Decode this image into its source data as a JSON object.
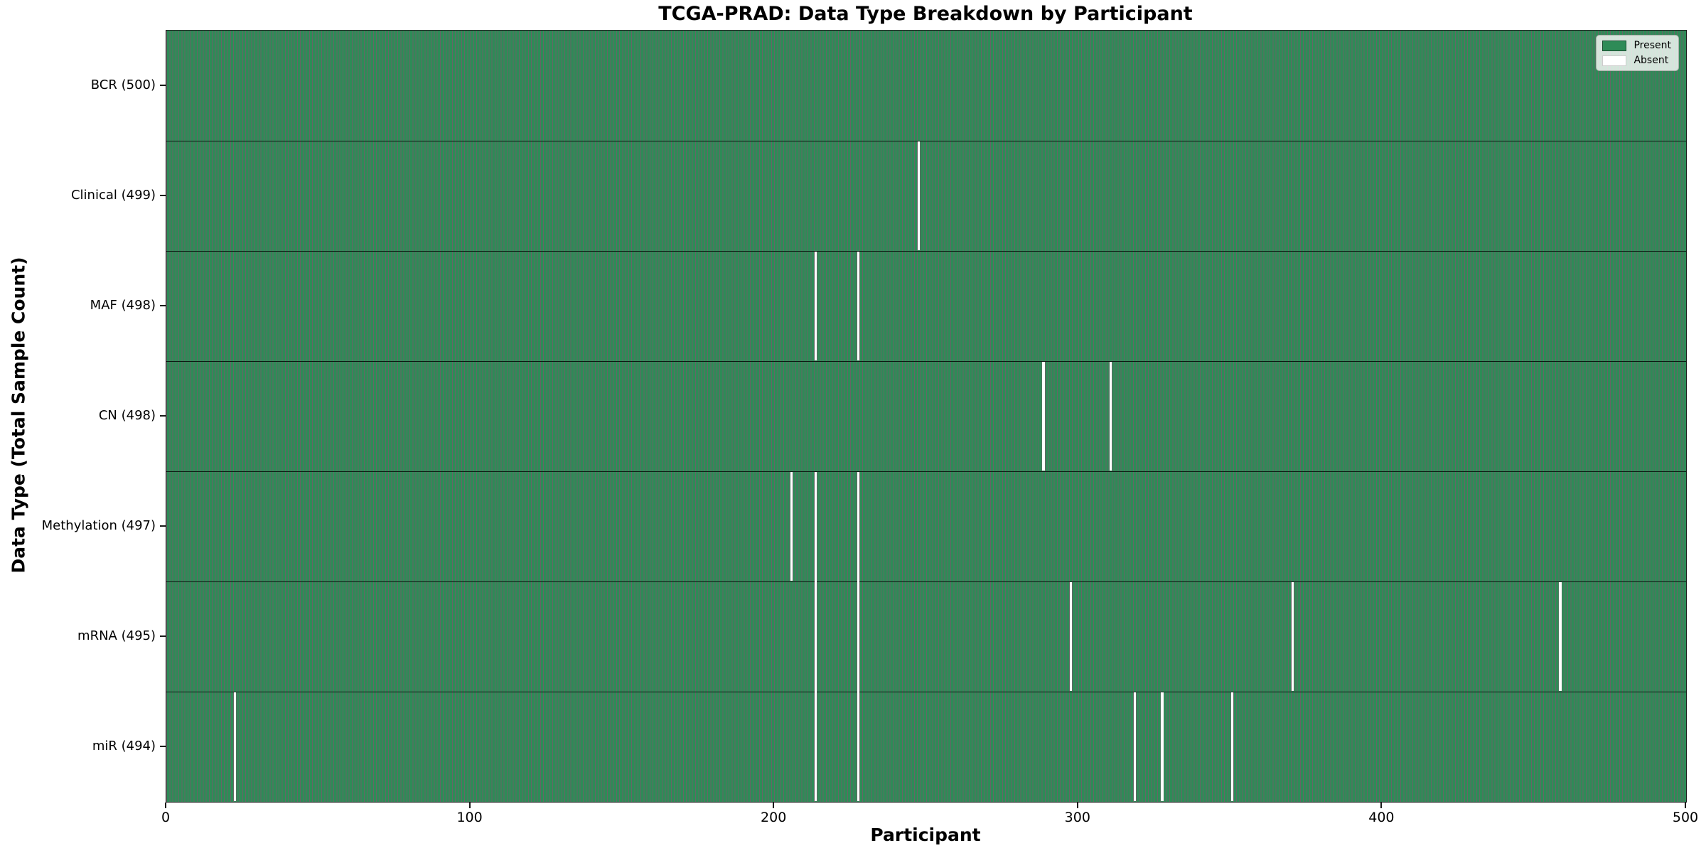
{
  "title": "TCGA-PRAD: Data Type Breakdown by Participant",
  "xlabel": "Participant",
  "ylabel": "Data Type (Total Sample Count)",
  "legend": {
    "present_label": "Present",
    "absent_label": "Absent"
  },
  "colors": {
    "present": "#2e8b57",
    "absent": "#ffffff",
    "bar_edge": "rgba(0,0,0,0.6)",
    "row_separator": "rgba(0,0,0,0.8)",
    "axis": "#1a1a1a"
  },
  "chart_data": {
    "type": "heatmap",
    "title": "TCGA-PRAD: Data Type Breakdown by Participant",
    "xlabel": "Participant",
    "ylabel": "Data Type (Total Sample Count)",
    "x_range": [
      0,
      500
    ],
    "x_ticks": [
      0,
      100,
      200,
      300,
      400,
      500
    ],
    "grid": false,
    "legend_position": "upper right",
    "legend_entries": [
      "Present",
      "Absent"
    ],
    "cell_states": {
      "present": 1,
      "absent": 0
    },
    "rows": [
      {
        "label": "BCR (500)",
        "name": "BCR",
        "total_present": 500,
        "absent_participants": []
      },
      {
        "label": "Clinical (499)",
        "name": "Clinical",
        "total_present": 499,
        "absent_participants": [
          247
        ]
      },
      {
        "label": "MAF (498)",
        "name": "MAF",
        "total_present": 498,
        "absent_participants": [
          213,
          227
        ]
      },
      {
        "label": "CN (498)",
        "name": "CN",
        "total_present": 498,
        "absent_participants": [
          288,
          310
        ]
      },
      {
        "label": "Methylation (497)",
        "name": "Methylation",
        "total_present": 497,
        "absent_participants": [
          205,
          213,
          227
        ]
      },
      {
        "label": "mRNA (495)",
        "name": "mRNA",
        "total_present": 495,
        "absent_participants": [
          213,
          227,
          297,
          370,
          458
        ]
      },
      {
        "label": "miR (494)",
        "name": "miR",
        "total_present": 494,
        "absent_participants": [
          22,
          213,
          227,
          318,
          327,
          350
        ]
      }
    ]
  }
}
